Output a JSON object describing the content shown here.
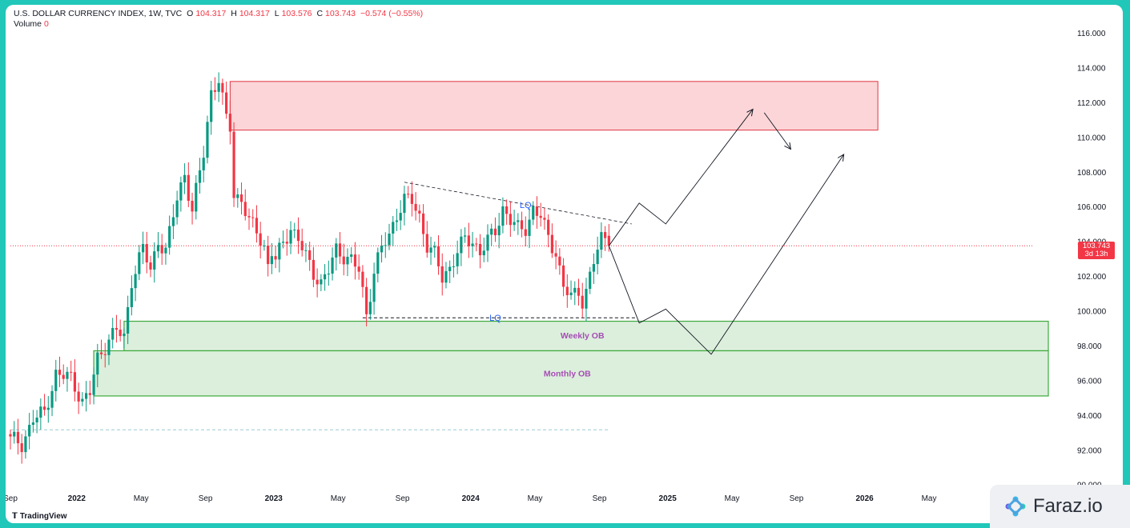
{
  "header": {
    "symbol": "U.S. DOLLAR CURRENCY INDEX, 1W, TVC",
    "o_label": "O",
    "o_value": "104.317",
    "h_label": "H",
    "h_value": "104.317",
    "l_label": "L",
    "l_value": "103.576",
    "c_label": "C",
    "c_value": "103.743",
    "change": "−0.574 (−0.55%)",
    "volume_label": "Volume",
    "volume_value": "0"
  },
  "price_tag": {
    "price": "103.743",
    "countdown": "3d 13h"
  },
  "branding": {
    "tradingview": "TradingView",
    "faraz": "Faraz.io"
  },
  "colors": {
    "up": "#089981",
    "down": "#f23645",
    "supply_fill": "#fbd5d7",
    "supply_border": "#e03642",
    "ob_fill": "#dcefdc",
    "ob_border": "#3daa3d",
    "zone_label": "#a64db5",
    "lq_label": "#2962ff",
    "background": "#ffffff",
    "frame": "#21c7b8"
  },
  "chart_data": {
    "type": "candlestick",
    "title": "U.S. DOLLAR CURRENCY INDEX, 1W, TVC",
    "ylim": [
      90,
      116.5
    ],
    "y_ticks": [
      "116.000",
      "114.000",
      "112.000",
      "110.000",
      "108.000",
      "106.000",
      "104.000",
      "102.000",
      "100.000",
      "98.000",
      "96.000",
      "94.000",
      "92.000",
      "90.000"
    ],
    "y_tick_values": [
      116,
      114,
      112,
      110,
      108,
      106,
      104,
      102,
      100,
      98,
      96,
      94,
      92,
      90
    ],
    "x_ticks": [
      {
        "label": "Sep",
        "t": 0
      },
      {
        "label": "2022",
        "t": 17.5
      },
      {
        "label": "May",
        "t": 34.5
      },
      {
        "label": "Sep",
        "t": 51.5
      },
      {
        "label": "2023",
        "t": 69.5
      },
      {
        "label": "May",
        "t": 86.5
      },
      {
        "label": "Sep",
        "t": 103.5
      },
      {
        "label": "2024",
        "t": 121.5
      },
      {
        "label": "May",
        "t": 138.5
      },
      {
        "label": "Sep",
        "t": 155.5
      },
      {
        "label": "2025",
        "t": 173.5
      },
      {
        "label": "May",
        "t": 190.5
      },
      {
        "label": "Sep",
        "t": 207.5
      },
      {
        "label": "2026",
        "t": 225.5
      },
      {
        "label": "May",
        "t": 242.5
      }
    ],
    "anchors": [
      [
        0,
        92.6
      ],
      [
        3,
        92.3
      ],
      [
        6,
        93.8
      ],
      [
        9,
        94.1
      ],
      [
        12,
        96.4
      ],
      [
        16,
        96.1
      ],
      [
        19,
        94.8
      ],
      [
        21,
        95.3
      ],
      [
        23,
        97.2
      ],
      [
        26,
        98.4
      ],
      [
        28,
        98.9
      ],
      [
        30,
        98.4
      ],
      [
        32,
        101.8
      ],
      [
        35,
        103.6
      ],
      [
        37,
        102.3
      ],
      [
        39,
        104.1
      ],
      [
        41,
        103.4
      ],
      [
        44,
        106.5
      ],
      [
        46,
        107.9
      ],
      [
        48,
        105.7
      ],
      [
        51,
        109.1
      ],
      [
        53,
        112.6
      ],
      [
        55,
        113.3
      ],
      [
        56,
        112.1
      ],
      [
        57,
        111.0
      ],
      [
        58,
        110.6
      ],
      [
        59,
        106.7
      ],
      [
        61,
        106.4
      ],
      [
        63,
        105.1
      ],
      [
        65,
        104.6
      ],
      [
        67,
        103.7
      ],
      [
        68,
        102.6
      ],
      [
        69,
        103.4
      ],
      [
        70,
        102.9
      ],
      [
        72,
        103.9
      ],
      [
        74,
        104.8
      ],
      [
        76,
        104.1
      ],
      [
        78,
        103.1
      ],
      [
        80,
        102.2
      ],
      [
        82,
        101.6
      ],
      [
        84,
        102.3
      ],
      [
        86,
        103.5
      ],
      [
        88,
        103.2
      ],
      [
        90,
        102.9
      ],
      [
        92,
        102.3
      ],
      [
        94,
        99.8
      ],
      [
        96,
        102.3
      ],
      [
        98,
        103.6
      ],
      [
        100,
        104.3
      ],
      [
        102,
        105.6
      ],
      [
        104,
        106.4
      ],
      [
        106,
        106.3
      ],
      [
        108,
        105.4
      ],
      [
        110,
        103.8
      ],
      [
        112,
        103.2
      ],
      [
        114,
        101.9
      ],
      [
        116,
        102.5
      ],
      [
        118,
        103.4
      ],
      [
        120,
        104.1
      ],
      [
        122,
        104.0
      ],
      [
        124,
        103.4
      ],
      [
        126,
        104.0
      ],
      [
        128,
        104.6
      ],
      [
        130,
        105.9
      ],
      [
        132,
        105.2
      ],
      [
        134,
        104.7
      ],
      [
        136,
        104.8
      ],
      [
        138,
        105.8
      ],
      [
        140,
        105.4
      ],
      [
        142,
        104.2
      ],
      [
        144,
        103.4
      ],
      [
        146,
        101.3
      ],
      [
        148,
        100.8
      ],
      [
        150,
        101.2
      ],
      [
        151,
        100.6
      ],
      [
        152,
        101.1
      ],
      [
        154,
        102.8
      ],
      [
        156,
        104.2
      ],
      [
        157,
        104.3
      ],
      [
        158,
        103.74
      ]
    ],
    "horizontal_lines": [
      {
        "name": "current-price-line",
        "y": 103.743,
        "from_t": 0,
        "to_t": 270,
        "style": "dotted"
      },
      {
        "name": "lower-dashed-level",
        "y": 93.15,
        "from_t": 0,
        "to_t": 158,
        "style": "dashed"
      },
      {
        "name": "lq-low-line",
        "y": 99.6,
        "from_t": 93,
        "to_t": 165,
        "style": "dashed"
      }
    ],
    "trend_line": {
      "name": "lq-high-trendline",
      "from": [
        104,
        107.4
      ],
      "to": [
        164,
        105.0
      ]
    },
    "zones": [
      {
        "name": "supply-zone",
        "t0": 58,
        "t1": 229,
        "y0": 113.2,
        "y1": 110.4,
        "label": ""
      },
      {
        "name": "weekly-ob-zone",
        "t0": 30,
        "t1": 274,
        "y0": 99.4,
        "y1": 97.7,
        "label": "Weekly OB"
      },
      {
        "name": "monthly-ob-zone",
        "t0": 22,
        "t1": 274,
        "y0": 97.7,
        "y1": 95.1,
        "label": "Monthly OB"
      }
    ],
    "annotations": [
      {
        "name": "lq-high-label",
        "text": "LQ",
        "t": 136,
        "y": 106.1
      },
      {
        "name": "lq-low-label",
        "text": "LQ",
        "t": 128,
        "y": 99.6
      },
      {
        "name": "weekly-ob-label",
        "text": "Weekly OB",
        "t": 151,
        "y": 98.6
      },
      {
        "name": "monthly-ob-label",
        "text": "Monthly OB",
        "t": 147,
        "y": 96.4
      }
    ],
    "projections": [
      {
        "name": "projection-path-upper",
        "points": [
          [
            158,
            103.74
          ],
          [
            166,
            106.2
          ],
          [
            173,
            105.0
          ],
          [
            196,
            111.6
          ]
        ]
      },
      {
        "name": "projection-path-lower",
        "points": [
          [
            158,
            103.74
          ],
          [
            166,
            99.3
          ],
          [
            173,
            100.1
          ],
          [
            185,
            97.5
          ],
          [
            220,
            109.0
          ]
        ]
      },
      {
        "name": "projection-path-reversal",
        "points": [
          [
            199,
            111.4
          ],
          [
            206,
            109.3
          ]
        ]
      }
    ]
  }
}
